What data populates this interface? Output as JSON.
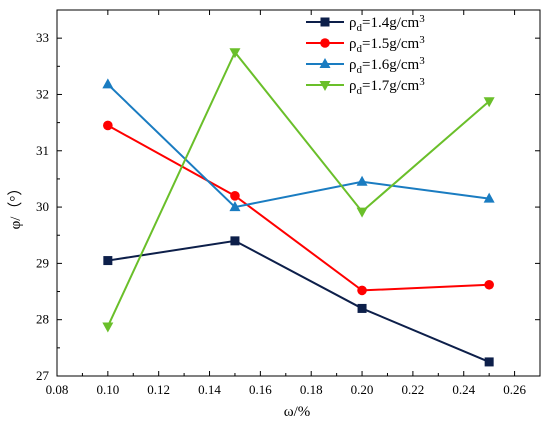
{
  "chart_data": {
    "type": "line",
    "xlabel": "ω/%",
    "ylabel": "φ/（°）",
    "xlim": [
      0.08,
      0.27
    ],
    "ylim": [
      27,
      33.5
    ],
    "x_ticks": [
      "0.08",
      "0.10",
      "0.12",
      "0.14",
      "0.16",
      "0.18",
      "0.20",
      "0.22",
      "0.24",
      "0.26"
    ],
    "y_ticks": [
      "27",
      "28",
      "29",
      "30",
      "31",
      "32",
      "33"
    ],
    "grid": false,
    "legend_position": "top-right",
    "x": [
      0.1,
      0.15,
      0.2,
      0.25
    ],
    "series": [
      {
        "name": "ρd=1.4g/cm3",
        "name_parts": [
          "ρ",
          "d",
          "=1.4g/cm",
          "3"
        ],
        "color": "#0d1f4a",
        "marker": "square",
        "values": [
          29.05,
          29.4,
          28.2,
          27.25
        ]
      },
      {
        "name": "ρd=1.5g/cm3",
        "name_parts": [
          "ρ",
          "d",
          "=1.5g/cm",
          "3"
        ],
        "color": "#ff0000",
        "marker": "circle",
        "values": [
          31.45,
          30.2,
          28.52,
          28.62
        ]
      },
      {
        "name": "ρd=1.6g/cm3",
        "name_parts": [
          "ρ",
          "d",
          "=1.6g/cm",
          "3"
        ],
        "color": "#1a7cc1",
        "marker": "triangle-up",
        "values": [
          32.18,
          30.0,
          30.45,
          30.15
        ]
      },
      {
        "name": "ρd=1.7g/cm3",
        "name_parts": [
          "ρ",
          "d",
          "=1.7g/cm",
          "3"
        ],
        "color": "#6abf2a",
        "marker": "triangle-down",
        "values": [
          27.88,
          32.75,
          29.92,
          31.88
        ]
      }
    ]
  }
}
